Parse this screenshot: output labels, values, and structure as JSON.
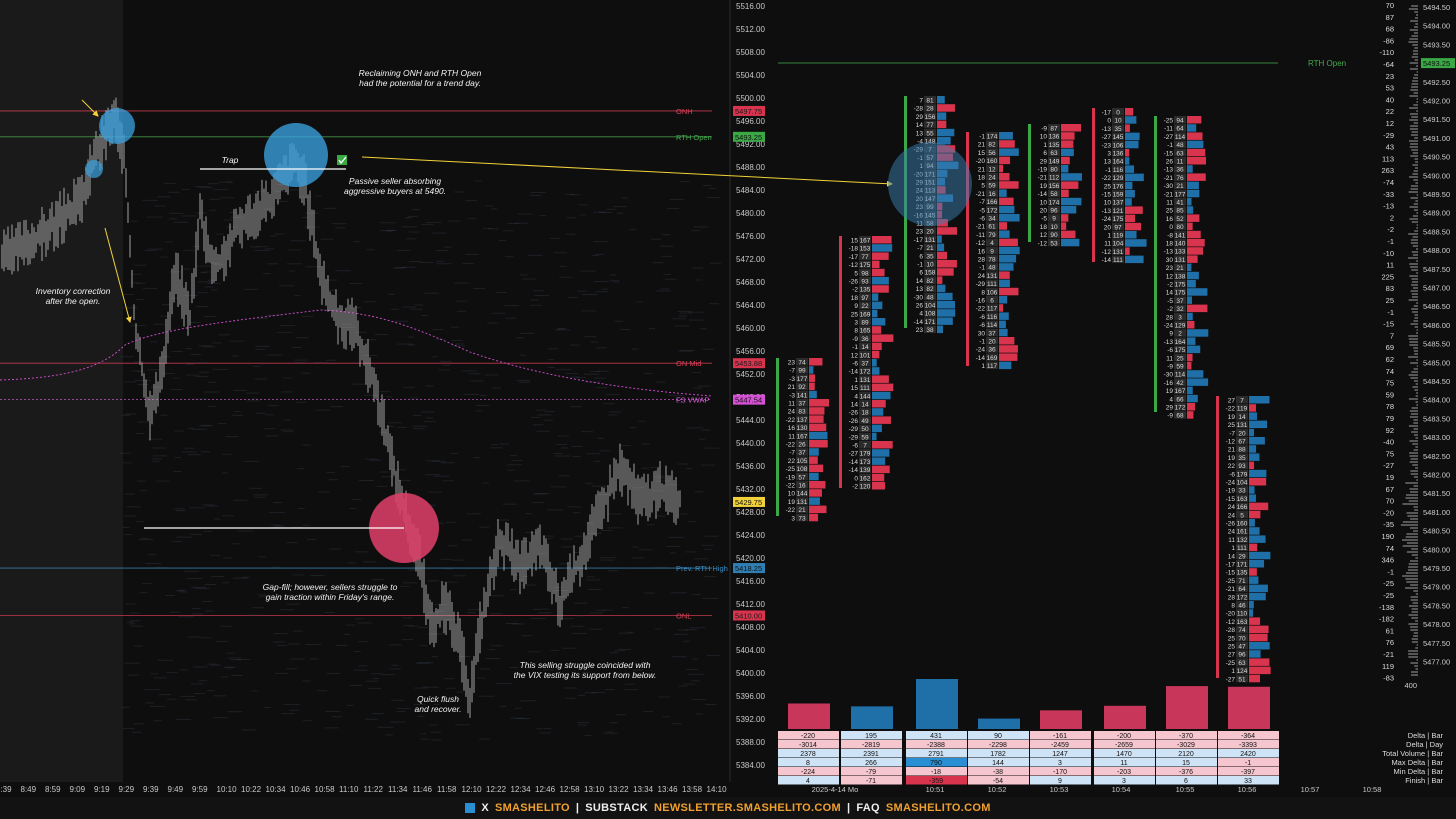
{
  "price_axis": {
    "labels": [
      "5516.00",
      "5512.00",
      "5508.00",
      "5504.00",
      "5500.00",
      "5496.00",
      "5492.00",
      "5488.00",
      "5484.00",
      "5480.00",
      "5476.00",
      "5472.00",
      "5468.00",
      "5464.00",
      "5460.00",
      "5456.00",
      "5452.00",
      "5448.00",
      "5444.00",
      "5440.00",
      "5436.00",
      "5432.00",
      "5428.00",
      "5424.00",
      "5420.00",
      "5416.00",
      "5412.00",
      "5408.00",
      "5404.00",
      "5400.00",
      "5396.00",
      "5392.00",
      "5388.00",
      "5384.00"
    ]
  },
  "levels": [
    {
      "name": "ONH",
      "price": 5497.75,
      "tag": "5497.75",
      "color": "#e0405a",
      "tag_bg": "#d8344e",
      "tag_fg": "#1a1a1a"
    },
    {
      "name": "RTH Open",
      "price": 5493.25,
      "tag": "5493.25",
      "color": "#46a84e",
      "tag_bg": "#3aa845",
      "tag_fg": "#111"
    },
    {
      "name": "ON Mid",
      "price": 5453.88,
      "tag": "5453.88",
      "color": "#e0405a",
      "tag_bg": "#d8344e",
      "tag_fg": "#1a1a1a"
    },
    {
      "name": "FS VWAP",
      "price": 5447.54,
      "tag": "5447.54",
      "color": "#e061e0",
      "tag_bg": "#d650d6",
      "tag_fg": "#111"
    },
    {
      "name": "Prev. RTH High",
      "price": 5418.25,
      "tag": "5418.25",
      "color": "#3a8cc0",
      "tag_bg": "#2f7fb5",
      "tag_fg": "#111"
    },
    {
      "name": "ONL",
      "price": 5410.0,
      "tag": "5410.00",
      "color": "#e0405a",
      "tag_bg": "#d8344e",
      "tag_fg": "#1a1a1a"
    }
  ],
  "last_price": {
    "tag": "5429.75",
    "bg": "#f2d23a"
  },
  "time_axis": [
    "8:39",
    "8:49",
    "8:59",
    "9:09",
    "9:19",
    "9:29",
    "9:39",
    "9:49",
    "9:59",
    "10:10",
    "10:22",
    "10:34",
    "10:46",
    "10:58",
    "11:10",
    "11:22",
    "11:34",
    "11:46",
    "11:58",
    "12:10",
    "12:22",
    "12:34",
    "12:46",
    "12:58",
    "13:10",
    "13:22",
    "13:34",
    "13:46",
    "13:58",
    "14:10"
  ],
  "annotations": {
    "reclaim": "Reclaiming ONH and RTH Open\nhad the potential for a trend day.",
    "trap": "Trap",
    "passive": "Passive seller absorbing\naggressive buyers at 5490.",
    "inventory": "Inventory correction\nafter the open.",
    "gapfill": "Gap-fill; however, sellers struggle to\ngain traction within Friday's range.",
    "vix": "This selling struggle coincided with\nthe VIX testing its support from below.",
    "flush": "Quick flush\nand recover."
  },
  "footprint": {
    "rth_open_label": "RTH Open",
    "delta_bars": [
      -220,
      195,
      431,
      90,
      -161,
      -200,
      -370,
      -364
    ],
    "stats": {
      "labels": [
        "Delta | Bar",
        "Delta | Day",
        "Total Volume | Bar",
        "Max Delta | Bar",
        "Min Delta | Bar",
        "Finish | Bar"
      ],
      "rows": [
        [
          "-220",
          "195",
          "431",
          "90",
          "-161",
          "-200",
          "-370",
          "-364"
        ],
        [
          "-3014",
          "-2819",
          "-2388",
          "-2298",
          "-2459",
          "-2659",
          "-3029",
          "-3393"
        ],
        [
          "2378",
          "2391",
          "2791",
          "1782",
          "1247",
          "1470",
          "2120",
          "2420"
        ],
        [
          "8",
          "266",
          "790",
          "144",
          "3",
          "11",
          "15",
          "-1"
        ],
        [
          "-224",
          "-79",
          "-18",
          "-38",
          "-170",
          "-203",
          "-376",
          "-397"
        ],
        [
          "4",
          "-71",
          "-359",
          "-54",
          "9",
          "3",
          "6",
          "33"
        ]
      ]
    },
    "time_labels": [
      "2025-4-14 Mo",
      "10:51",
      "10:52",
      "10:53",
      "10:54",
      "10:55",
      "10:56",
      "10:57",
      "10:58"
    ]
  },
  "delta_axis": [
    "70",
    "87",
    "68",
    "-86",
    "-110",
    "-64",
    "23",
    "53",
    "40",
    "22",
    "12",
    "-29",
    "43",
    "113",
    "263",
    "-74",
    "-33",
    "-13",
    "2",
    "-2",
    "-1",
    "-10",
    "11",
    "225",
    "83",
    "25",
    "-1",
    "-15",
    "7",
    "69",
    "62",
    "74",
    "75",
    "59",
    "78",
    "79",
    "92",
    "-40",
    "75",
    "-27",
    "19",
    "67",
    "70",
    "-20",
    "-35",
    "190",
    "74",
    "346",
    "-1",
    "-25",
    "-25",
    "-138",
    "-182",
    "61",
    "76",
    "-21",
    "119",
    "-83"
  ],
  "right_axis": [
    "5494.50",
    "5494.00",
    "5493.50",
    "5493.25",
    "5492.50",
    "5492.00",
    "5491.50",
    "5491.00",
    "5490.50",
    "5490.00",
    "5489.50",
    "5489.00",
    "5488.50",
    "5488.00",
    "5487.50",
    "5487.00",
    "5486.50",
    "5486.00",
    "5485.50",
    "5485.00",
    "5484.50",
    "5484.00",
    "5483.50",
    "5483.00",
    "5482.50",
    "5482.00",
    "5481.50",
    "5481.00",
    "5480.50",
    "5480.00",
    "5479.50",
    "5479.00",
    "5478.50",
    "5478.00",
    "5477.50",
    "5477.00"
  ],
  "footer": {
    "x": "X",
    "handle": "SMASHELITO",
    "substack": "SUBSTACK",
    "newsletter": "NEWSLETTER.SMASHELITO.COM",
    "faq": "FAQ",
    "faq_url": "SMASHELITO.COM",
    "sep": "|",
    "accent": "#f0a030"
  }
}
